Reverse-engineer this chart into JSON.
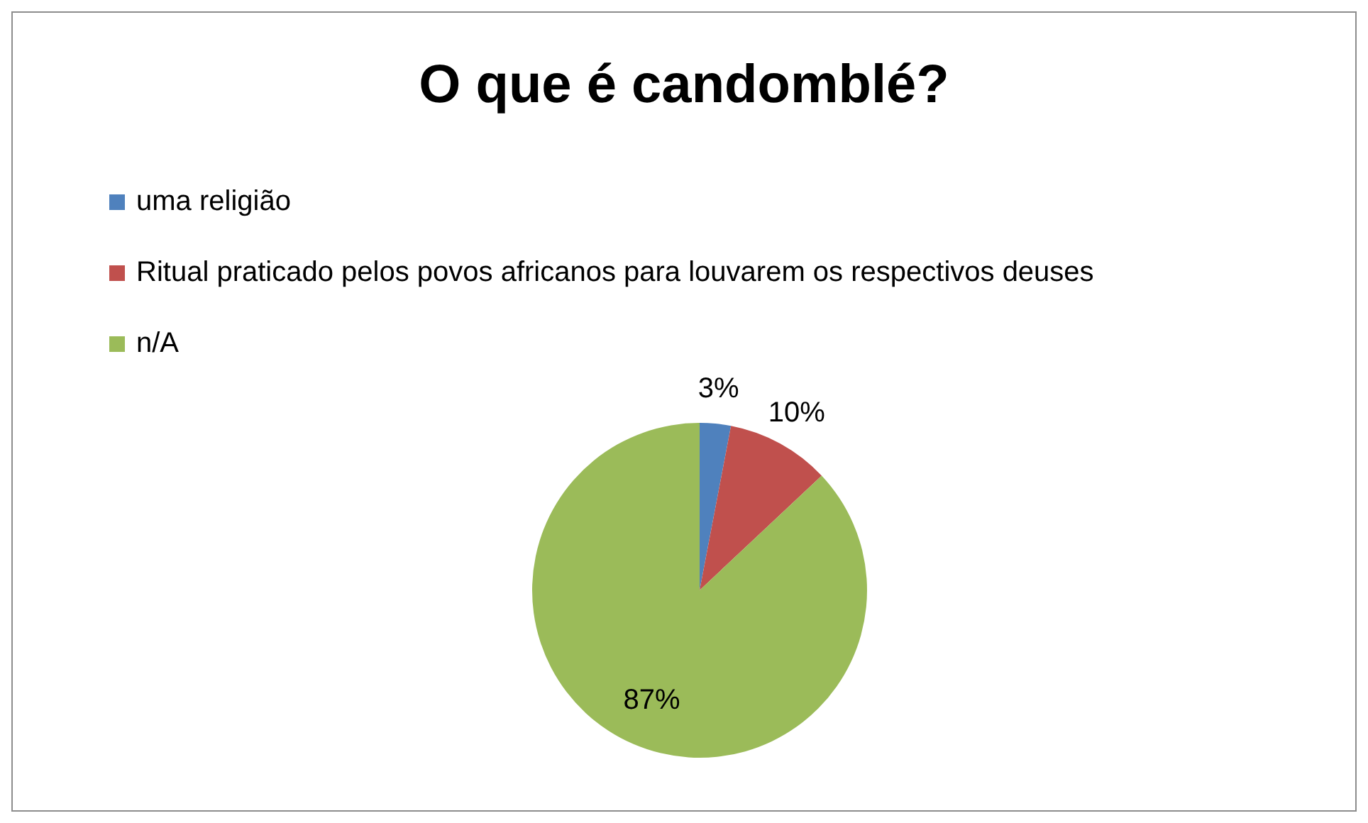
{
  "chart_data": {
    "type": "pie",
    "title": "O que é candomblé?",
    "categories": [
      "uma religião",
      "Ritual praticado pelos povos africanos para louvarem os respectivos deuses",
      "n/A"
    ],
    "values": [
      3,
      10,
      87
    ],
    "colors": [
      "#4f81bd",
      "#c0504d",
      "#9bbb59"
    ],
    "legend": "top left",
    "value_labels": [
      "3%",
      "10%",
      "87%"
    ]
  }
}
